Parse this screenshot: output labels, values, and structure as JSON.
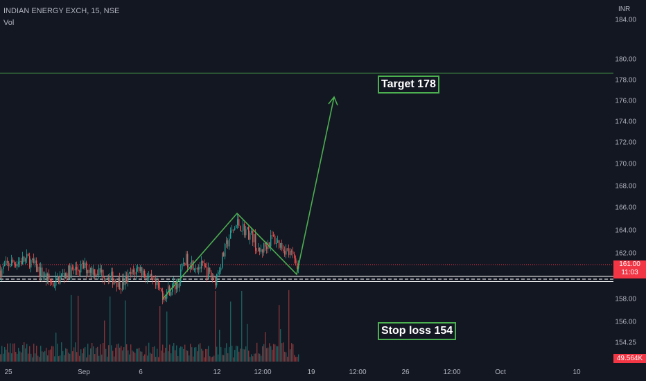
{
  "header": {
    "symbol_title": "INDIAN ENERGY EXCH, 15, NSE",
    "volume_label": "Vol",
    "currency": "INR"
  },
  "last_price": {
    "price": "161.00",
    "countdown": "11:03"
  },
  "volume_last": "49.564K",
  "colors": {
    "background": "#131722",
    "up": "#26a69a",
    "down": "#ef5350",
    "drawing": "#4caf50",
    "support": "#ffffff",
    "last_price": "#f23645"
  },
  "chart_data": {
    "type": "candlestick",
    "y_axis": {
      "ylim": [
        153.4,
        185.4
      ],
      "ticks": [
        154.25,
        156,
        158,
        160,
        162,
        164,
        166,
        168,
        170,
        172,
        174,
        176,
        178,
        180,
        184
      ]
    },
    "x_axis": {
      "ticks": [
        "25",
        "Sep",
        "6",
        "12",
        "12:00",
        "19",
        "12:00",
        "26",
        "12:00",
        "Oct",
        "10"
      ]
    },
    "annotations": {
      "target_label": "Target 178",
      "target_level": 178.5,
      "stop_label": "Stop loss 154",
      "support_levels": [
        159.9,
        160.3
      ],
      "pattern_points": [
        {
          "bar": 235,
          "price": 158.1
        },
        {
          "bar": 342,
          "price": 165.5
        },
        {
          "bar": 428,
          "price": 160.5
        },
        {
          "bar": 482,
          "price": 176.3
        }
      ],
      "last_price_level": 161.0
    }
  }
}
